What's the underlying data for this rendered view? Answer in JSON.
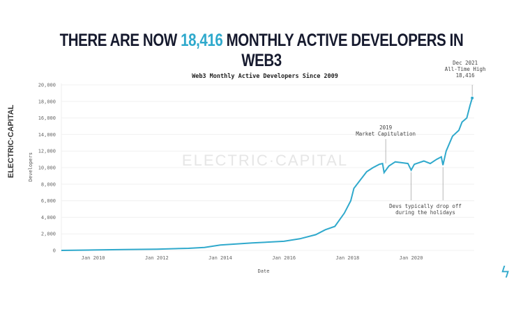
{
  "headline": {
    "prefix": "THERE ARE NOW ",
    "highlight": "18,416",
    "suffix": " MONTHLY ACTIVE DEVELOPERS IN WEB3"
  },
  "brand": "ELECTRIC·CAPITAL",
  "watermark": "ELECTRIC·CAPITAL",
  "colors": {
    "line": "#2fa9cc",
    "title": "#161a2e"
  },
  "chart_data": {
    "type": "line",
    "title": "Web3 Monthly Active Developers Since 2009",
    "xlabel": "Date",
    "ylabel": "Developers",
    "ylim": [
      0,
      20000
    ],
    "xlim": [
      2009,
      2022
    ],
    "yticks": [
      0,
      2000,
      4000,
      6000,
      8000,
      10000,
      12000,
      14000,
      16000,
      18000,
      20000
    ],
    "ytick_labels": [
      "0",
      "2,000",
      "4,000",
      "6,000",
      "8,000",
      "10,000",
      "12,000",
      "14,000",
      "16,000",
      "18,000",
      "20,000"
    ],
    "xticks": [
      2010,
      2012,
      2014,
      2016,
      2018,
      2020
    ],
    "xtick_labels": [
      "Jan 2010",
      "Jan 2012",
      "Jan 2014",
      "Jan 2016",
      "Jan 2018",
      "Jan 2020"
    ],
    "grid": true,
    "series": [
      {
        "name": "Developers",
        "x": [
          2009,
          2010,
          2011,
          2012,
          2013,
          2013.5,
          2014,
          2015,
          2016,
          2016.5,
          2017,
          2017.3,
          2017.6,
          2017.9,
          2018.1,
          2018.2,
          2018.4,
          2018.6,
          2018.8,
          2019.0,
          2019.1,
          2019.15,
          2019.3,
          2019.5,
          2019.7,
          2019.9,
          2020.0,
          2020.1,
          2020.4,
          2020.6,
          2020.8,
          2020.95,
          2021.0,
          2021.1,
          2021.3,
          2021.5,
          2021.6,
          2021.75,
          2021.85,
          2021.92
        ],
        "y": [
          0,
          50,
          100,
          150,
          250,
          350,
          650,
          900,
          1100,
          1400,
          1900,
          2500,
          2900,
          4500,
          6000,
          7500,
          8500,
          9500,
          10000,
          10400,
          10500,
          9400,
          10200,
          10700,
          10600,
          10500,
          9700,
          10400,
          10800,
          10500,
          11000,
          11300,
          10300,
          12000,
          13800,
          14500,
          15500,
          16000,
          17500,
          18416
        ]
      }
    ],
    "annotations": [
      {
        "x": 2019.2,
        "y": 10500,
        "lines": [
          "2019",
          "Market Capitulation"
        ]
      },
      {
        "x": 2021.92,
        "y": 18416,
        "lines": [
          "Dec 2021",
          "All-Time High",
          "18,416"
        ]
      },
      {
        "x": 2020.0,
        "y": 9700,
        "lines": [
          "Devs typically drop off",
          "during the holidays"
        ]
      },
      {
        "x": 2021.0,
        "y": 10300,
        "lines": []
      }
    ]
  }
}
